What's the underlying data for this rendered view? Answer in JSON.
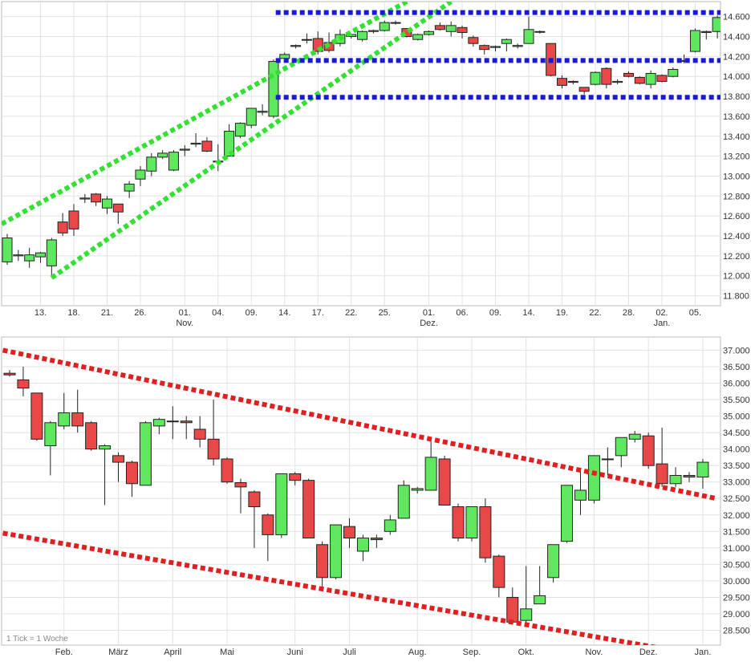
{
  "colors": {
    "up": "#5fe85f",
    "down": "#e84848",
    "green_channel": "#33e033",
    "blue_levels": "#1a1ad6",
    "red_channel": "#e02020",
    "grid": "#e2e2e2",
    "axis_text": "#333333"
  },
  "footnote": "1 Tick = 1 Woche",
  "chart_data": [
    {
      "type": "candlestick",
      "title": "",
      "ylim": [
        11700,
        14750
      ],
      "y_ticks": [
        "11.800",
        "12.000",
        "12.200",
        "12.400",
        "12.600",
        "12.800",
        "13.000",
        "13.200",
        "13.400",
        "13.600",
        "13.800",
        "14.000",
        "14.200",
        "14.400",
        "14.600"
      ],
      "y_tick_values": [
        11800,
        12000,
        12200,
        12400,
        12600,
        12800,
        13000,
        13200,
        13400,
        13600,
        13800,
        14000,
        14200,
        14400,
        14600
      ],
      "x_ticks": [
        {
          "label": "13.",
          "i": 3
        },
        {
          "label": "18.",
          "i": 6
        },
        {
          "label": "21.",
          "i": 9
        },
        {
          "label": "26.",
          "i": 12
        },
        {
          "label": "01.",
          "i": 16
        },
        {
          "label": "04.",
          "i": 19
        },
        {
          "label": "09.",
          "i": 22
        },
        {
          "label": "14.",
          "i": 25
        },
        {
          "label": "17.",
          "i": 28
        },
        {
          "label": "22.",
          "i": 31
        },
        {
          "label": "25.",
          "i": 34
        },
        {
          "label": "01.",
          "i": 38
        },
        {
          "label": "06.",
          "i": 41
        },
        {
          "label": "09.",
          "i": 44
        },
        {
          "label": "14.",
          "i": 47
        },
        {
          "label": "19.",
          "i": 50
        },
        {
          "label": "22.",
          "i": 53
        },
        {
          "label": "28.",
          "i": 56
        },
        {
          "label": "02.",
          "i": 59
        },
        {
          "label": "05.",
          "i": 62
        }
      ],
      "month_labels": [
        {
          "label": "Nov.",
          "i": 16
        },
        {
          "label": "Dez.",
          "i": 38
        },
        {
          "label": "Jan.",
          "i": 59
        }
      ],
      "candles": [
        [
          12140,
          12380,
          12420,
          12110
        ],
        [
          12200,
          12210,
          12260,
          12150
        ],
        [
          12150,
          12210,
          12280,
          12080
        ],
        [
          12190,
          12230,
          12240,
          12130
        ],
        [
          12100,
          12360,
          12380,
          12000
        ],
        [
          12540,
          12430,
          12630,
          12400
        ],
        [
          12650,
          12470,
          12720,
          12400
        ],
        [
          12770,
          12780,
          12820,
          12730
        ],
        [
          12820,
          12740,
          12830,
          12700
        ],
        [
          12680,
          12770,
          12800,
          12620
        ],
        [
          12720,
          12640,
          12720,
          12520
        ],
        [
          12850,
          12920,
          12950,
          12780
        ],
        [
          12970,
          13060,
          13100,
          12900
        ],
        [
          13050,
          13190,
          13230,
          13000
        ],
        [
          13190,
          13230,
          13260,
          13170
        ],
        [
          13060,
          13240,
          13260,
          13050
        ],
        [
          13260,
          13270,
          13310,
          13200
        ],
        [
          13320,
          13330,
          13430,
          13290
        ],
        [
          13350,
          13250,
          13390,
          13240
        ],
        [
          13150,
          13150,
          13320,
          13050
        ],
        [
          13200,
          13450,
          13520,
          13200
        ],
        [
          13400,
          13530,
          13540,
          13380
        ],
        [
          13510,
          13680,
          13680,
          13480
        ],
        [
          13640,
          13650,
          13720,
          13610
        ],
        [
          13600,
          14150,
          14170,
          13580
        ],
        [
          14180,
          14220,
          14240,
          14170
        ],
        [
          14300,
          14310,
          14320,
          14280
        ],
        [
          14370,
          14370,
          14430,
          14330
        ],
        [
          14380,
          14250,
          14450,
          14220
        ],
        [
          14340,
          14260,
          14440,
          14240
        ],
        [
          14330,
          14420,
          14470,
          14300
        ],
        [
          14400,
          14420,
          14420,
          14380
        ],
        [
          14370,
          14450,
          14460,
          14350
        ],
        [
          14450,
          14460,
          14470,
          14430
        ],
        [
          14460,
          14540,
          14560,
          14450
        ],
        [
          14540,
          14540,
          14560,
          14520
        ],
        [
          14480,
          14400,
          14480,
          14390
        ],
        [
          14370,
          14420,
          14430,
          14360
        ],
        [
          14420,
          14450,
          14460,
          14410
        ],
        [
          14510,
          14470,
          14540,
          14460
        ],
        [
          14450,
          14510,
          14550,
          14400
        ],
        [
          14490,
          14440,
          14510,
          14380
        ],
        [
          14390,
          14330,
          14410,
          14300
        ],
        [
          14310,
          14270,
          14320,
          14220
        ],
        [
          14290,
          14300,
          14310,
          14250
        ],
        [
          14330,
          14370,
          14380,
          14250
        ],
        [
          14300,
          14310,
          14330,
          14280
        ],
        [
          14330,
          14470,
          14600,
          14330
        ],
        [
          14450,
          14450,
          14460,
          14430
        ],
        [
          14330,
          14010,
          14330,
          14000
        ],
        [
          13980,
          13910,
          14010,
          13880
        ],
        [
          13950,
          13940,
          13960,
          13920
        ],
        [
          13890,
          13850,
          13890,
          13820
        ],
        [
          13920,
          14040,
          14050,
          13910
        ],
        [
          14080,
          13920,
          14090,
          13880
        ],
        [
          13940,
          13950,
          13970,
          13920
        ],
        [
          14030,
          14000,
          14050,
          13990
        ],
        [
          13990,
          13930,
          14000,
          13920
        ],
        [
          13920,
          14030,
          14060,
          13880
        ],
        [
          14010,
          13950,
          14020,
          13940
        ],
        [
          14000,
          14070,
          14090,
          13990
        ],
        [
          14150,
          14160,
          14220,
          14130
        ],
        [
          14250,
          14460,
          14480,
          14240
        ],
        [
          14450,
          14440,
          14460,
          14370
        ],
        [
          14450,
          14590,
          14610,
          14380
        ]
      ],
      "lines": [
        {
          "kind": "green-channel",
          "p1": [
            -0.5,
            12520
          ],
          "p2": [
            37,
            14810
          ]
        },
        {
          "kind": "green-channel",
          "p1": [
            4,
            11980
          ],
          "p2": [
            40,
            14750
          ]
        },
        {
          "kind": "blue-level",
          "p1": [
            24.2,
            14640
          ],
          "p2": [
            65.5,
            14640
          ]
        },
        {
          "kind": "blue-level",
          "p1": [
            24.2,
            14160
          ],
          "p2": [
            65.5,
            14160
          ]
        },
        {
          "kind": "blue-level",
          "p1": [
            24.2,
            13790
          ],
          "p2": [
            65.5,
            13790
          ]
        }
      ]
    },
    {
      "type": "candlestick",
      "title": "",
      "ylim": [
        28050,
        37400
      ],
      "y_ticks": [
        "28.500",
        "29.000",
        "29.500",
        "30.000",
        "30.500",
        "31.000",
        "31.500",
        "32.000",
        "32.500",
        "33.000",
        "33.500",
        "34.000",
        "34.500",
        "35.000",
        "35.500",
        "36.000",
        "36.500",
        "37.000"
      ],
      "y_tick_values": [
        28500,
        29000,
        29500,
        30000,
        30500,
        31000,
        31500,
        32000,
        32500,
        33000,
        33500,
        34000,
        34500,
        35000,
        35500,
        36000,
        36500,
        37000
      ],
      "x_ticks": [
        {
          "label": "Feb.",
          "i": 4
        },
        {
          "label": "März",
          "i": 8
        },
        {
          "label": "April",
          "i": 12
        },
        {
          "label": "Mai",
          "i": 16
        },
        {
          "label": "Juni",
          "i": 21
        },
        {
          "label": "Juli",
          "i": 25
        },
        {
          "label": "Aug.",
          "i": 30
        },
        {
          "label": "Sep.",
          "i": 34
        },
        {
          "label": "Okt.",
          "i": 38
        },
        {
          "label": "Nov.",
          "i": 43
        },
        {
          "label": "Dez.",
          "i": 47
        },
        {
          "label": "Jan.",
          "i": 51
        }
      ],
      "candles": [
        [
          36300,
          36250,
          36400,
          36200
        ],
        [
          36100,
          35850,
          36500,
          35600
        ],
        [
          35700,
          34300,
          35700,
          34250
        ],
        [
          34100,
          34800,
          34850,
          33200
        ],
        [
          34700,
          35100,
          35700,
          34600
        ],
        [
          35100,
          34700,
          35800,
          34500
        ],
        [
          34800,
          34000,
          34850,
          33950
        ],
        [
          34000,
          34100,
          34150,
          32300
        ],
        [
          33800,
          33600,
          33900,
          33000
        ],
        [
          33600,
          32950,
          33650,
          32550
        ],
        [
          32900,
          34800,
          34850,
          32900
        ],
        [
          34700,
          34900,
          34950,
          34450
        ],
        [
          34850,
          34850,
          35300,
          34300
        ],
        [
          34850,
          34800,
          35000,
          34300
        ],
        [
          34600,
          34300,
          35000,
          34050
        ],
        [
          34300,
          33700,
          35500,
          33500
        ],
        [
          33700,
          33000,
          33750,
          32950
        ],
        [
          32980,
          32850,
          33100,
          32050
        ],
        [
          32700,
          32250,
          32750,
          31000
        ],
        [
          32000,
          31400,
          32050,
          30600
        ],
        [
          31400,
          33250,
          33250,
          31300
        ],
        [
          33250,
          33050,
          33300,
          32900
        ],
        [
          33050,
          31300,
          33100,
          31300
        ],
        [
          31100,
          30100,
          31200,
          29700
        ],
        [
          30100,
          31700,
          31700,
          30050
        ],
        [
          31650,
          31300,
          31900,
          31000
        ],
        [
          30900,
          31300,
          31400,
          30600
        ],
        [
          31300,
          31250,
          31400,
          31000
        ],
        [
          31500,
          31850,
          32000,
          31400
        ],
        [
          31900,
          32900,
          33050,
          31950
        ],
        [
          32750,
          32800,
          32850,
          32650
        ],
        [
          32750,
          33750,
          34300,
          32800
        ],
        [
          33700,
          32300,
          33800,
          32300
        ],
        [
          32250,
          31300,
          32350,
          31200
        ],
        [
          31300,
          32250,
          32250,
          31200
        ],
        [
          32250,
          30700,
          32500,
          30550
        ],
        [
          30750,
          29800,
          30800,
          29500
        ],
        [
          29500,
          28750,
          29800,
          28700
        ],
        [
          28800,
          29150,
          30450,
          28650
        ],
        [
          29300,
          29550,
          30450,
          29500
        ],
        [
          30100,
          31100,
          31100,
          29950
        ],
        [
          31200,
          32900,
          32900,
          31150
        ],
        [
          32450,
          32750,
          33400,
          32000
        ],
        [
          32450,
          33800,
          33800,
          32350
        ],
        [
          33700,
          33700,
          34050,
          33200
        ],
        [
          33800,
          34350,
          34350,
          33450
        ],
        [
          34300,
          34450,
          34550,
          34200
        ],
        [
          34400,
          33500,
          34500,
          33400
        ],
        [
          33550,
          32950,
          34650,
          32850
        ],
        [
          32950,
          33200,
          33450,
          32850
        ],
        [
          33200,
          33150,
          33300,
          33000
        ],
        [
          33150,
          33600,
          33700,
          32800
        ]
      ],
      "lines": [
        {
          "kind": "red-channel",
          "p1": [
            -0.5,
            37000
          ],
          "p2": [
            52,
            32500
          ]
        },
        {
          "kind": "red-channel",
          "p1": [
            -0.5,
            31450
          ],
          "p2": [
            48,
            27950
          ]
        }
      ]
    }
  ]
}
